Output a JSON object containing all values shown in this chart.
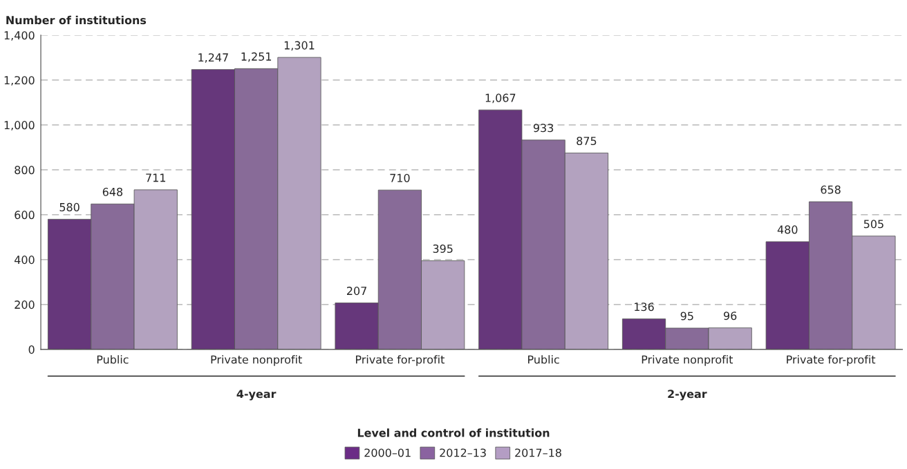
{
  "chart_data": {
    "type": "bar",
    "ylabel": "Number of institutions",
    "categories": [
      "Public",
      "Private nonprofit",
      "Private for-profit",
      "Public",
      "Private nonprofit",
      "Private for-profit"
    ],
    "series": [
      {
        "name": "2000–01",
        "color": "#6b2c86",
        "values": [
          580,
          1247,
          207,
          1067,
          136,
          480
        ],
        "value_labels": [
          "580",
          "1,247",
          "207",
          "1,067",
          "136",
          "480"
        ]
      },
      {
        "name": "2012–13",
        "color": "#8a63a0",
        "values": [
          648,
          1251,
          710,
          933,
          95,
          658
        ],
        "value_labels": [
          "648",
          "1,251",
          "710",
          "933",
          "95",
          "658"
        ]
      },
      {
        "name": "2017–18",
        "color": "#b49dc4",
        "values": [
          711,
          1301,
          395,
          875,
          96,
          505
        ],
        "value_labels": [
          "711",
          "1,301",
          "395",
          "875",
          "96",
          "505"
        ]
      }
    ],
    "annotations": [
      "4-year",
      "2-year",
      "Level and control of institution"
    ],
    "ylim": [
      0,
      1400
    ],
    "yticks": [
      0,
      200,
      400,
      600,
      800,
      {
        "value": 1000,
        "label": "1,000"
      },
      {
        "value": 1200,
        "label": "1,200"
      },
      {
        "value": 1400,
        "label": "1,400"
      }
    ],
    "grid": "y",
    "line_style": "dashed",
    "legend": "bottom"
  }
}
